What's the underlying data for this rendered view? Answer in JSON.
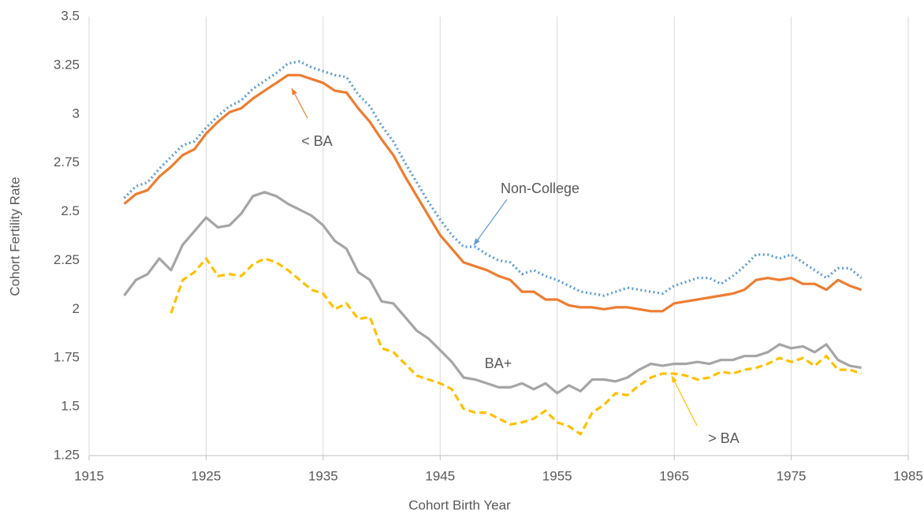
{
  "chart_data": {
    "type": "line",
    "xlabel": "Cohort Birth Year",
    "ylabel": "Cohort Fertility Rate",
    "x": [
      1918,
      1919,
      1920,
      1921,
      1922,
      1923,
      1924,
      1925,
      1926,
      1927,
      1928,
      1929,
      1930,
      1931,
      1932,
      1933,
      1934,
      1935,
      1936,
      1937,
      1938,
      1939,
      1940,
      1941,
      1942,
      1943,
      1944,
      1945,
      1946,
      1947,
      1948,
      1949,
      1950,
      1951,
      1952,
      1953,
      1954,
      1955,
      1956,
      1957,
      1958,
      1959,
      1960,
      1961,
      1962,
      1963,
      1964,
      1965,
      1966,
      1967,
      1968,
      1969,
      1970,
      1971,
      1972,
      1973,
      1974,
      1975,
      1976,
      1977,
      1978,
      1979,
      1980,
      1981
    ],
    "series": [
      {
        "name": "Non-College",
        "color": "#5b9bd5",
        "style": "dotted",
        "values": [
          2.57,
          2.63,
          2.65,
          2.72,
          2.78,
          2.84,
          2.86,
          2.93,
          2.99,
          3.04,
          3.07,
          3.13,
          3.17,
          3.21,
          3.26,
          3.27,
          3.24,
          3.22,
          3.2,
          3.19,
          3.1,
          3.04,
          2.94,
          2.86,
          2.75,
          2.65,
          2.55,
          2.46,
          2.38,
          2.32,
          2.32,
          2.28,
          2.25,
          2.24,
          2.18,
          2.2,
          2.17,
          2.15,
          2.12,
          2.09,
          2.08,
          2.07,
          2.09,
          2.11,
          2.1,
          2.09,
          2.08,
          2.12,
          2.14,
          2.16,
          2.16,
          2.13,
          2.17,
          2.22,
          2.28,
          2.28,
          2.26,
          2.28,
          2.24,
          2.2,
          2.16,
          2.21,
          2.21,
          2.16
        ]
      },
      {
        "name": "< BA",
        "color": "#ed7d31",
        "style": "solid",
        "values": [
          2.54,
          2.59,
          2.61,
          2.68,
          2.73,
          2.79,
          2.82,
          2.9,
          2.96,
          3.01,
          3.03,
          3.08,
          3.12,
          3.16,
          3.2,
          3.2,
          3.18,
          3.16,
          3.12,
          3.11,
          3.03,
          2.96,
          2.87,
          2.79,
          2.68,
          2.58,
          2.48,
          2.38,
          2.31,
          2.24,
          2.22,
          2.2,
          2.17,
          2.15,
          2.09,
          2.09,
          2.05,
          2.05,
          2.02,
          2.01,
          2.01,
          2.0,
          2.01,
          2.01,
          2.0,
          1.99,
          1.99,
          2.03,
          2.04,
          2.05,
          2.06,
          2.07,
          2.08,
          2.1,
          2.15,
          2.16,
          2.15,
          2.16,
          2.13,
          2.13,
          2.1,
          2.15,
          2.12,
          2.1
        ]
      },
      {
        "name": "BA+",
        "color": "#a5a5a5",
        "style": "solid",
        "values": [
          2.07,
          2.15,
          2.18,
          2.26,
          2.2,
          2.33,
          2.4,
          2.47,
          2.42,
          2.43,
          2.49,
          2.58,
          2.6,
          2.58,
          2.54,
          2.51,
          2.48,
          2.43,
          2.35,
          2.31,
          2.19,
          2.15,
          2.04,
          2.03,
          1.96,
          1.89,
          1.85,
          1.79,
          1.73,
          1.65,
          1.64,
          1.62,
          1.6,
          1.6,
          1.62,
          1.59,
          1.62,
          1.57,
          1.61,
          1.58,
          1.64,
          1.64,
          1.63,
          1.65,
          1.69,
          1.72,
          1.71,
          1.72,
          1.72,
          1.73,
          1.72,
          1.74,
          1.74,
          1.76,
          1.76,
          1.78,
          1.82,
          1.8,
          1.81,
          1.78,
          1.82,
          1.74,
          1.71,
          1.7
        ]
      },
      {
        "name": "> BA",
        "color": "#ffc000",
        "style": "dashed",
        "values": [
          null,
          null,
          null,
          null,
          1.98,
          2.15,
          2.19,
          2.26,
          2.17,
          2.18,
          2.17,
          2.23,
          2.26,
          2.24,
          2.2,
          2.15,
          2.1,
          2.08,
          2.0,
          2.03,
          1.95,
          1.96,
          1.8,
          1.78,
          1.72,
          1.66,
          1.64,
          1.62,
          1.59,
          1.49,
          1.47,
          1.47,
          1.44,
          1.41,
          1.42,
          1.44,
          1.48,
          1.42,
          1.4,
          1.36,
          1.47,
          1.51,
          1.57,
          1.56,
          1.61,
          1.65,
          1.67,
          1.67,
          1.66,
          1.64,
          1.65,
          1.68,
          1.67,
          1.69,
          1.7,
          1.72,
          1.75,
          1.73,
          1.75,
          1.71,
          1.76,
          1.69,
          1.69,
          1.67
        ]
      }
    ],
    "xlim": [
      1915,
      1985
    ],
    "xticks": [
      1915,
      1925,
      1935,
      1945,
      1955,
      1965,
      1975,
      1985
    ],
    "ylim": [
      1.25,
      3.5
    ],
    "yticks": [
      1.25,
      1.5,
      1.75,
      2,
      2.25,
      2.5,
      2.75,
      3,
      3.25,
      3.5
    ],
    "grid": "x"
  }
}
